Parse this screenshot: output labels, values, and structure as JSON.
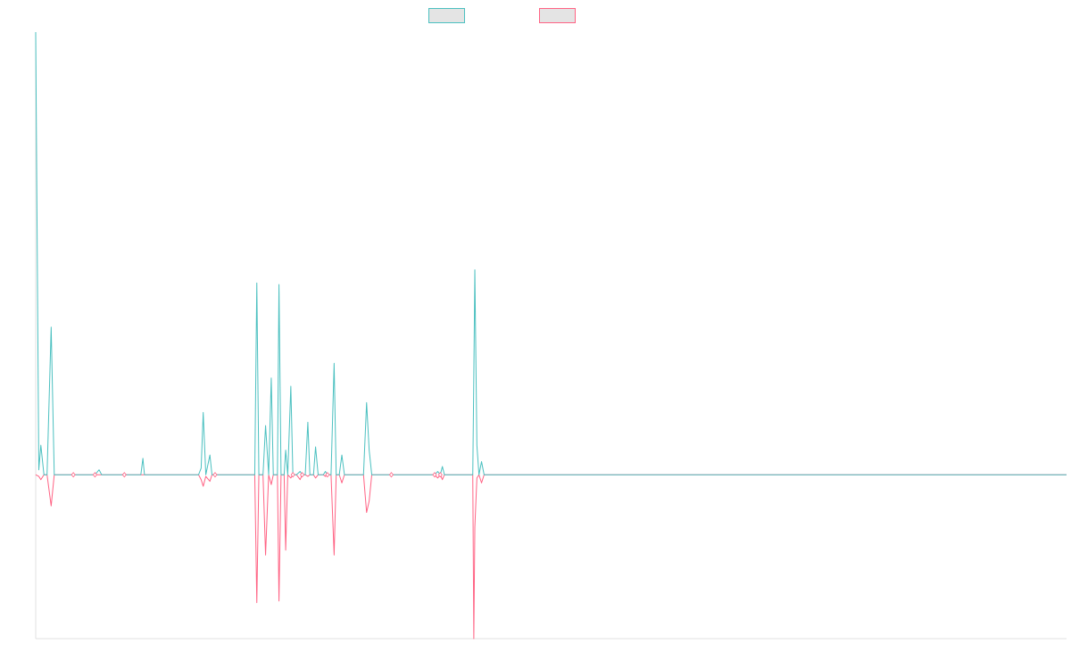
{
  "chart_data": {
    "type": "line",
    "title": "",
    "xlabel": "",
    "ylabel": "",
    "legend": {
      "position": "top-center",
      "show_labels": false
    },
    "grid": false,
    "xlim": [
      0,
      200
    ],
    "ylim": [
      -10,
      27
    ],
    "colors": {
      "series_a": "#4bc0c0",
      "series_b": "#ff6384",
      "legend_fill": "#e4e4e4",
      "axis": "#e0e0e0"
    },
    "series": [
      {
        "key": "a",
        "points": [
          [
            0,
            27
          ],
          [
            0.6,
            0.3
          ],
          [
            1.0,
            1.8
          ],
          [
            1.6,
            0
          ],
          [
            2.2,
            0
          ],
          [
            3.0,
            9
          ],
          [
            3.6,
            0
          ],
          [
            7.3,
            0
          ],
          [
            11.5,
            0
          ],
          [
            12.3,
            0.3
          ],
          [
            12.8,
            0
          ],
          [
            17.2,
            0
          ],
          [
            20.4,
            0
          ],
          [
            20.8,
            1.0
          ],
          [
            21.1,
            0
          ],
          [
            31.6,
            0
          ],
          [
            32.1,
            0.4
          ],
          [
            32.5,
            3.8
          ],
          [
            33.0,
            0
          ],
          [
            33.8,
            1.2
          ],
          [
            34.2,
            0
          ],
          [
            34.8,
            0
          ],
          [
            42.5,
            0
          ],
          [
            42.9,
            11.7
          ],
          [
            43.3,
            0
          ],
          [
            44.1,
            0
          ],
          [
            44.6,
            3.0
          ],
          [
            45.2,
            0
          ],
          [
            45.7,
            5.9
          ],
          [
            46.1,
            0
          ],
          [
            46.9,
            0
          ],
          [
            47.2,
            11.6
          ],
          [
            47.6,
            0
          ],
          [
            48.2,
            0
          ],
          [
            48.5,
            1.5
          ],
          [
            48.9,
            0
          ],
          [
            49.5,
            5.4
          ],
          [
            49.9,
            0
          ],
          [
            50.6,
            0
          ],
          [
            51.3,
            0.2
          ],
          [
            51.7,
            0
          ],
          [
            52.3,
            0
          ],
          [
            52.8,
            3.2
          ],
          [
            53.2,
            0
          ],
          [
            53.9,
            0
          ],
          [
            54.3,
            1.7
          ],
          [
            54.8,
            0
          ],
          [
            55.8,
            0
          ],
          [
            56.2,
            0.2
          ],
          [
            56.6,
            0
          ],
          [
            57.3,
            0
          ],
          [
            57.9,
            6.8
          ],
          [
            58.3,
            0
          ],
          [
            58.9,
            0
          ],
          [
            59.4,
            1.2
          ],
          [
            59.9,
            0
          ],
          [
            63.6,
            0
          ],
          [
            64.2,
            4.4
          ],
          [
            64.7,
            1.5
          ],
          [
            65.2,
            0
          ],
          [
            69.0,
            0
          ],
          [
            77.4,
            0
          ],
          [
            78.0,
            0.2
          ],
          [
            78.5,
            0
          ],
          [
            78.9,
            0.5
          ],
          [
            79.3,
            0
          ],
          [
            84.8,
            0
          ],
          [
            85.0,
            6.0
          ],
          [
            85.2,
            12.5
          ],
          [
            85.6,
            1.8
          ],
          [
            86.0,
            0
          ],
          [
            86.5,
            0.8
          ],
          [
            87.0,
            0
          ],
          [
            200,
            0
          ]
        ]
      },
      {
        "key": "b",
        "points": [
          [
            0,
            0
          ],
          [
            0.6,
            -0.1
          ],
          [
            1.0,
            -0.3
          ],
          [
            1.6,
            0
          ],
          [
            2.2,
            0
          ],
          [
            3.0,
            -1.9
          ],
          [
            3.6,
            0
          ],
          [
            7.3,
            0
          ],
          [
            11.5,
            0
          ],
          [
            12.3,
            0
          ],
          [
            12.8,
            0
          ],
          [
            17.2,
            0
          ],
          [
            20.4,
            0
          ],
          [
            20.8,
            0
          ],
          [
            21.1,
            0
          ],
          [
            31.6,
            0
          ],
          [
            32.1,
            -0.3
          ],
          [
            32.5,
            -0.7
          ],
          [
            33.0,
            -0.1
          ],
          [
            33.8,
            -0.4
          ],
          [
            34.2,
            0
          ],
          [
            34.8,
            0
          ],
          [
            42.5,
            0
          ],
          [
            42.9,
            -7.8
          ],
          [
            43.3,
            0
          ],
          [
            44.1,
            0
          ],
          [
            44.6,
            -4.9
          ],
          [
            45.2,
            0
          ],
          [
            45.7,
            -0.6
          ],
          [
            46.1,
            0
          ],
          [
            46.9,
            0
          ],
          [
            47.2,
            -7.7
          ],
          [
            47.6,
            0
          ],
          [
            48.2,
            0
          ],
          [
            48.5,
            -4.6
          ],
          [
            48.9,
            0
          ],
          [
            49.5,
            -0.2
          ],
          [
            49.9,
            0
          ],
          [
            50.6,
            0
          ],
          [
            51.3,
            -0.3
          ],
          [
            51.7,
            0
          ],
          [
            52.3,
            0
          ],
          [
            52.8,
            -0.1
          ],
          [
            53.2,
            0
          ],
          [
            53.9,
            0
          ],
          [
            54.3,
            -0.2
          ],
          [
            54.8,
            0
          ],
          [
            55.8,
            0
          ],
          [
            56.2,
            -0.1
          ],
          [
            56.6,
            0
          ],
          [
            57.3,
            0
          ],
          [
            57.9,
            -4.9
          ],
          [
            58.3,
            0
          ],
          [
            58.9,
            0
          ],
          [
            59.4,
            -0.5
          ],
          [
            59.9,
            0
          ],
          [
            63.6,
            0
          ],
          [
            64.2,
            -2.3
          ],
          [
            64.7,
            -1.6
          ],
          [
            65.2,
            0
          ],
          [
            69.0,
            0
          ],
          [
            77.4,
            0
          ],
          [
            78.0,
            -0.2
          ],
          [
            78.5,
            0
          ],
          [
            78.9,
            -0.3
          ],
          [
            79.3,
            0
          ],
          [
            84.8,
            0
          ],
          [
            85.0,
            -10
          ],
          [
            85.2,
            -3.2
          ],
          [
            85.6,
            -0.2
          ],
          [
            86.0,
            0
          ],
          [
            86.5,
            -0.5
          ],
          [
            87.0,
            0
          ],
          [
            200,
            0
          ]
        ]
      }
    ],
    "point_markers": [
      [
        7.3,
        0
      ],
      [
        11.5,
        0
      ],
      [
        17.2,
        0
      ],
      [
        34.8,
        0
      ],
      [
        49.9,
        0
      ],
      [
        51.7,
        0
      ],
      [
        56.6,
        0
      ],
      [
        69.0,
        0
      ],
      [
        77.4,
        0
      ],
      [
        78.5,
        0
      ]
    ]
  }
}
